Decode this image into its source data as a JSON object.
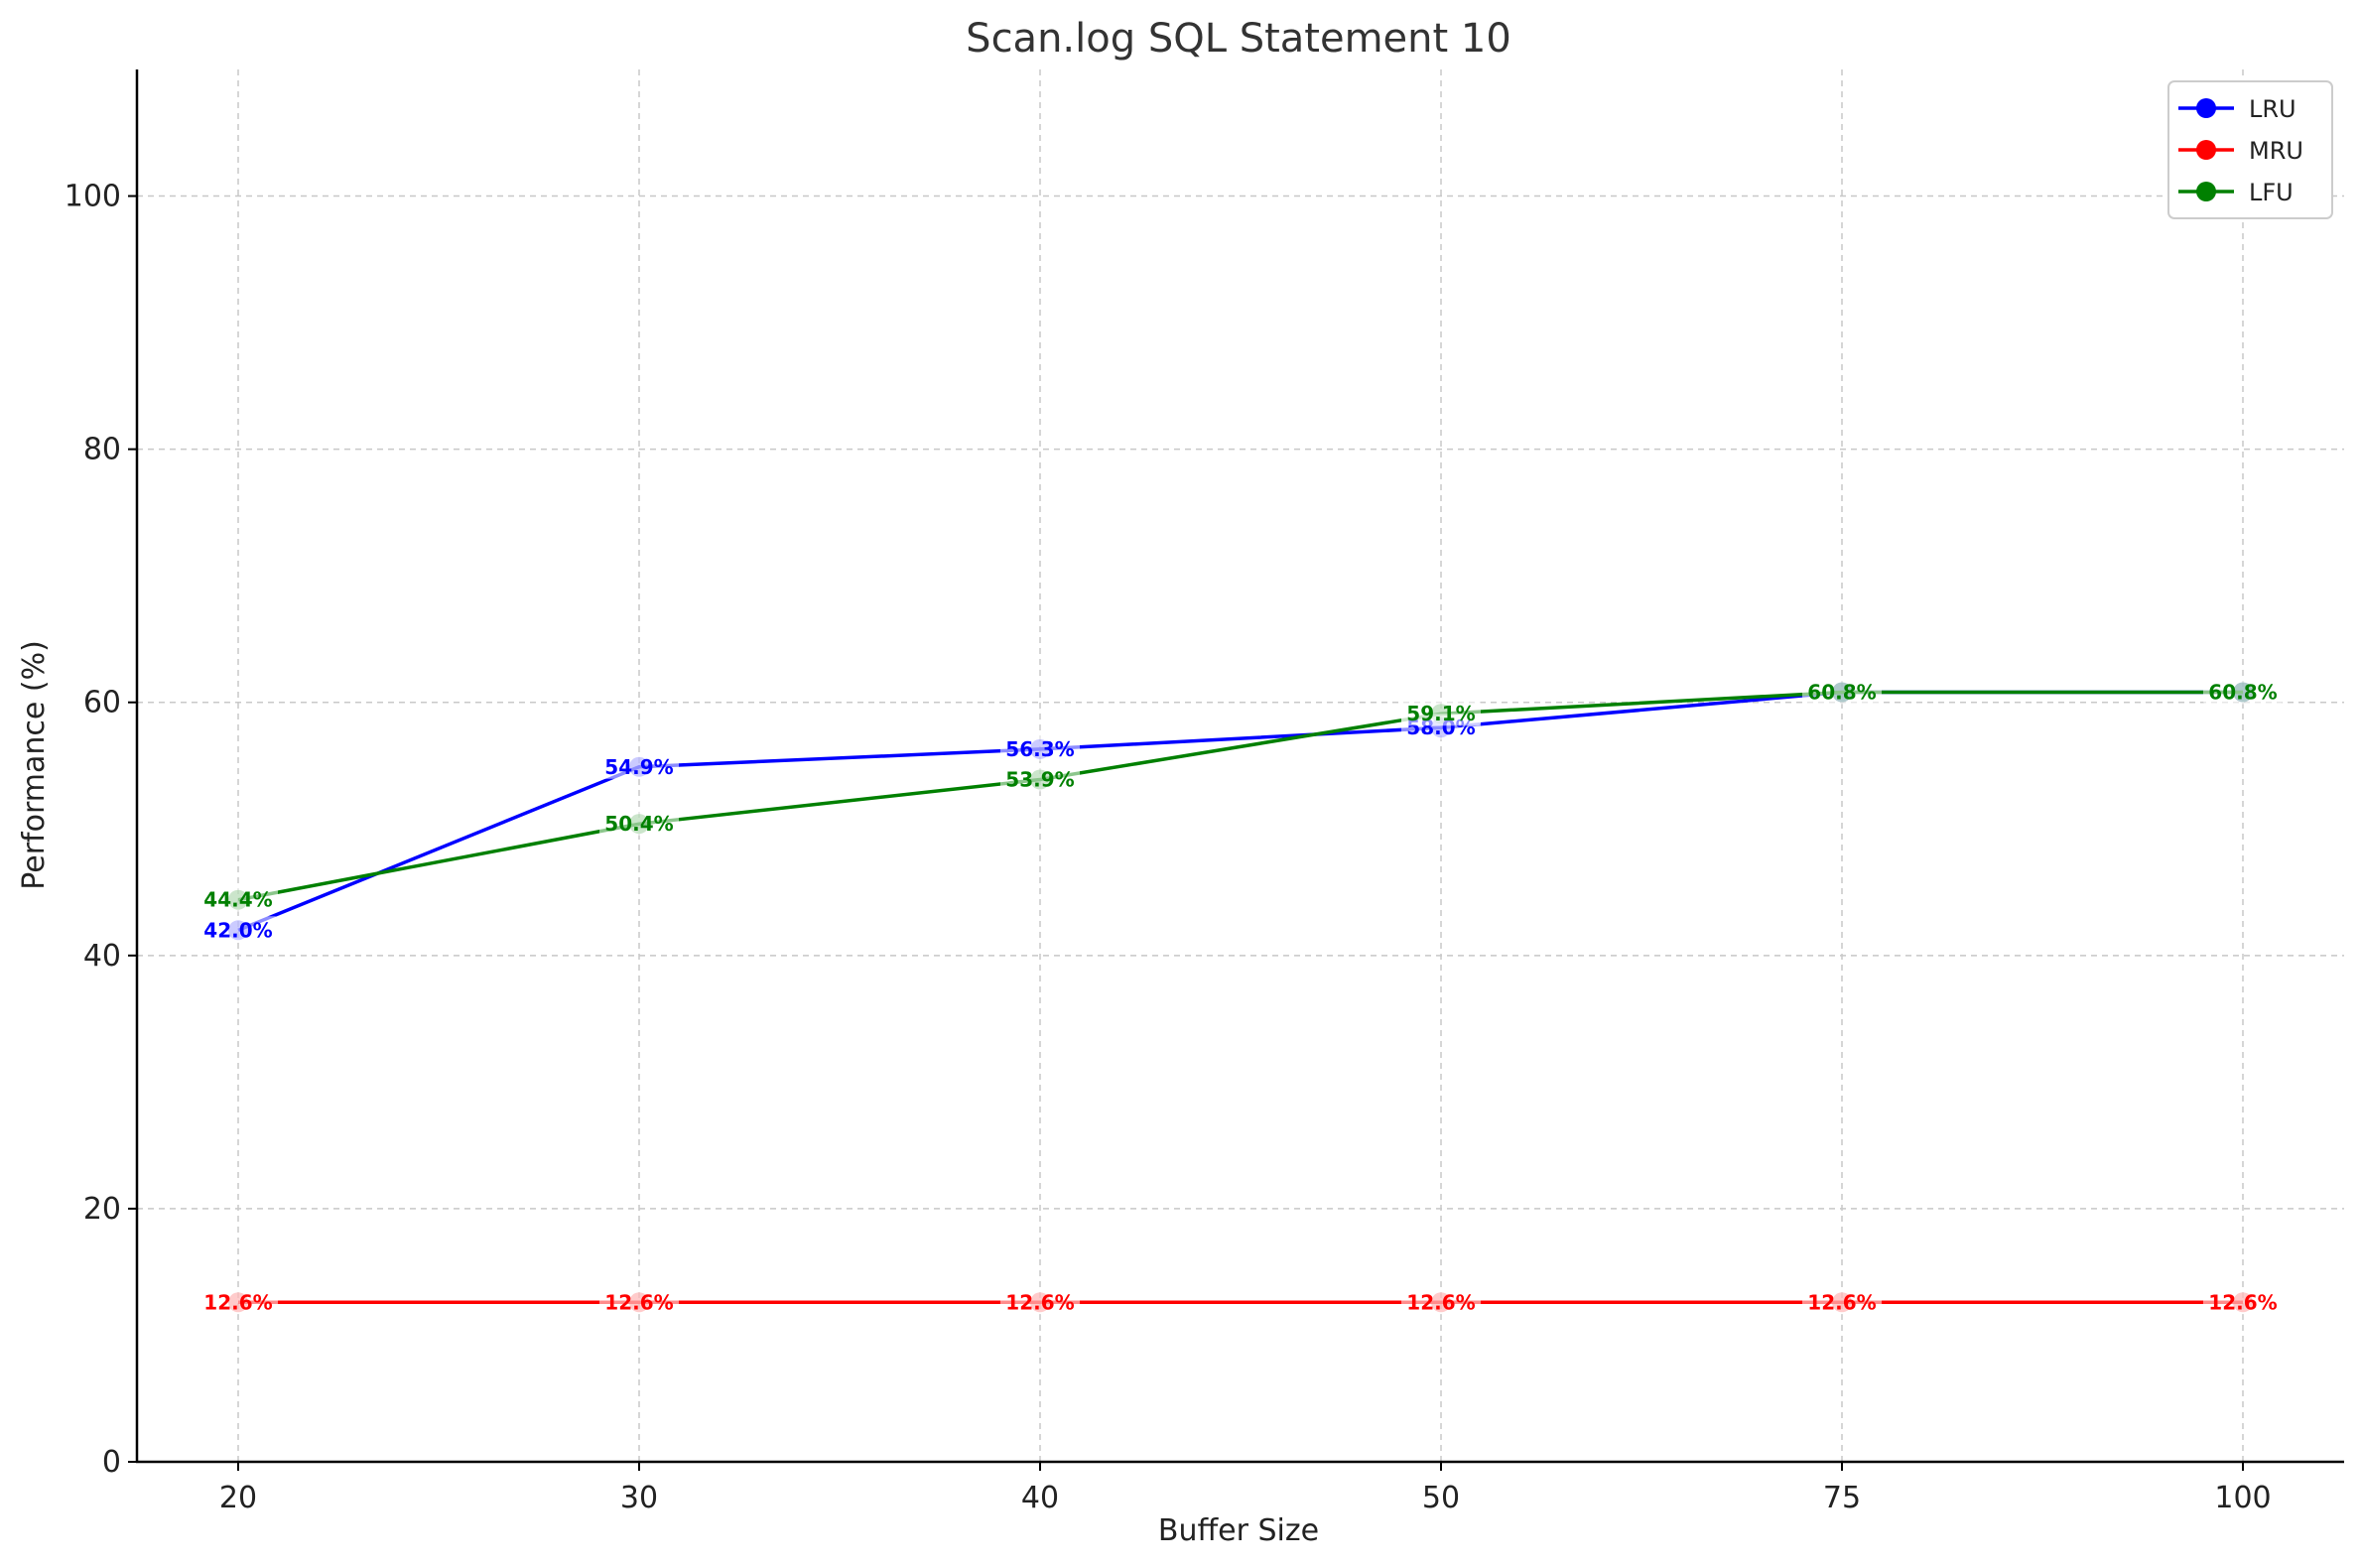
{
  "chart_data": {
    "type": "line",
    "title": "Scan.log SQL Statement 10",
    "xlabel": "Buffer Size",
    "ylabel": "Performance (%)",
    "categories": [
      "20",
      "30",
      "40",
      "50",
      "75",
      "100"
    ],
    "ylim": [
      0,
      110
    ],
    "yticks": [
      0,
      20,
      40,
      60,
      80,
      100
    ],
    "grid": true,
    "legend_position": "top-right",
    "series": [
      {
        "name": "LRU",
        "color": "#0000ff",
        "values": [
          42.0,
          54.9,
          56.3,
          58.0,
          60.8,
          60.8
        ],
        "labels": [
          "42.0%",
          "54.9%",
          "56.3%",
          "58.0%",
          "",
          ""
        ]
      },
      {
        "name": "MRU",
        "color": "#ff0000",
        "values": [
          12.6,
          12.6,
          12.6,
          12.6,
          12.6,
          12.6
        ],
        "labels": [
          "12.6%",
          "12.6%",
          "12.6%",
          "12.6%",
          "12.6%",
          "12.6%"
        ]
      },
      {
        "name": "LFU",
        "color": "#008000",
        "values": [
          44.4,
          50.4,
          53.9,
          59.1,
          60.8,
          60.8
        ],
        "labels": [
          "44.4%",
          "50.4%",
          "53.9%",
          "59.1%",
          "60.8%",
          "60.8%"
        ]
      }
    ]
  }
}
